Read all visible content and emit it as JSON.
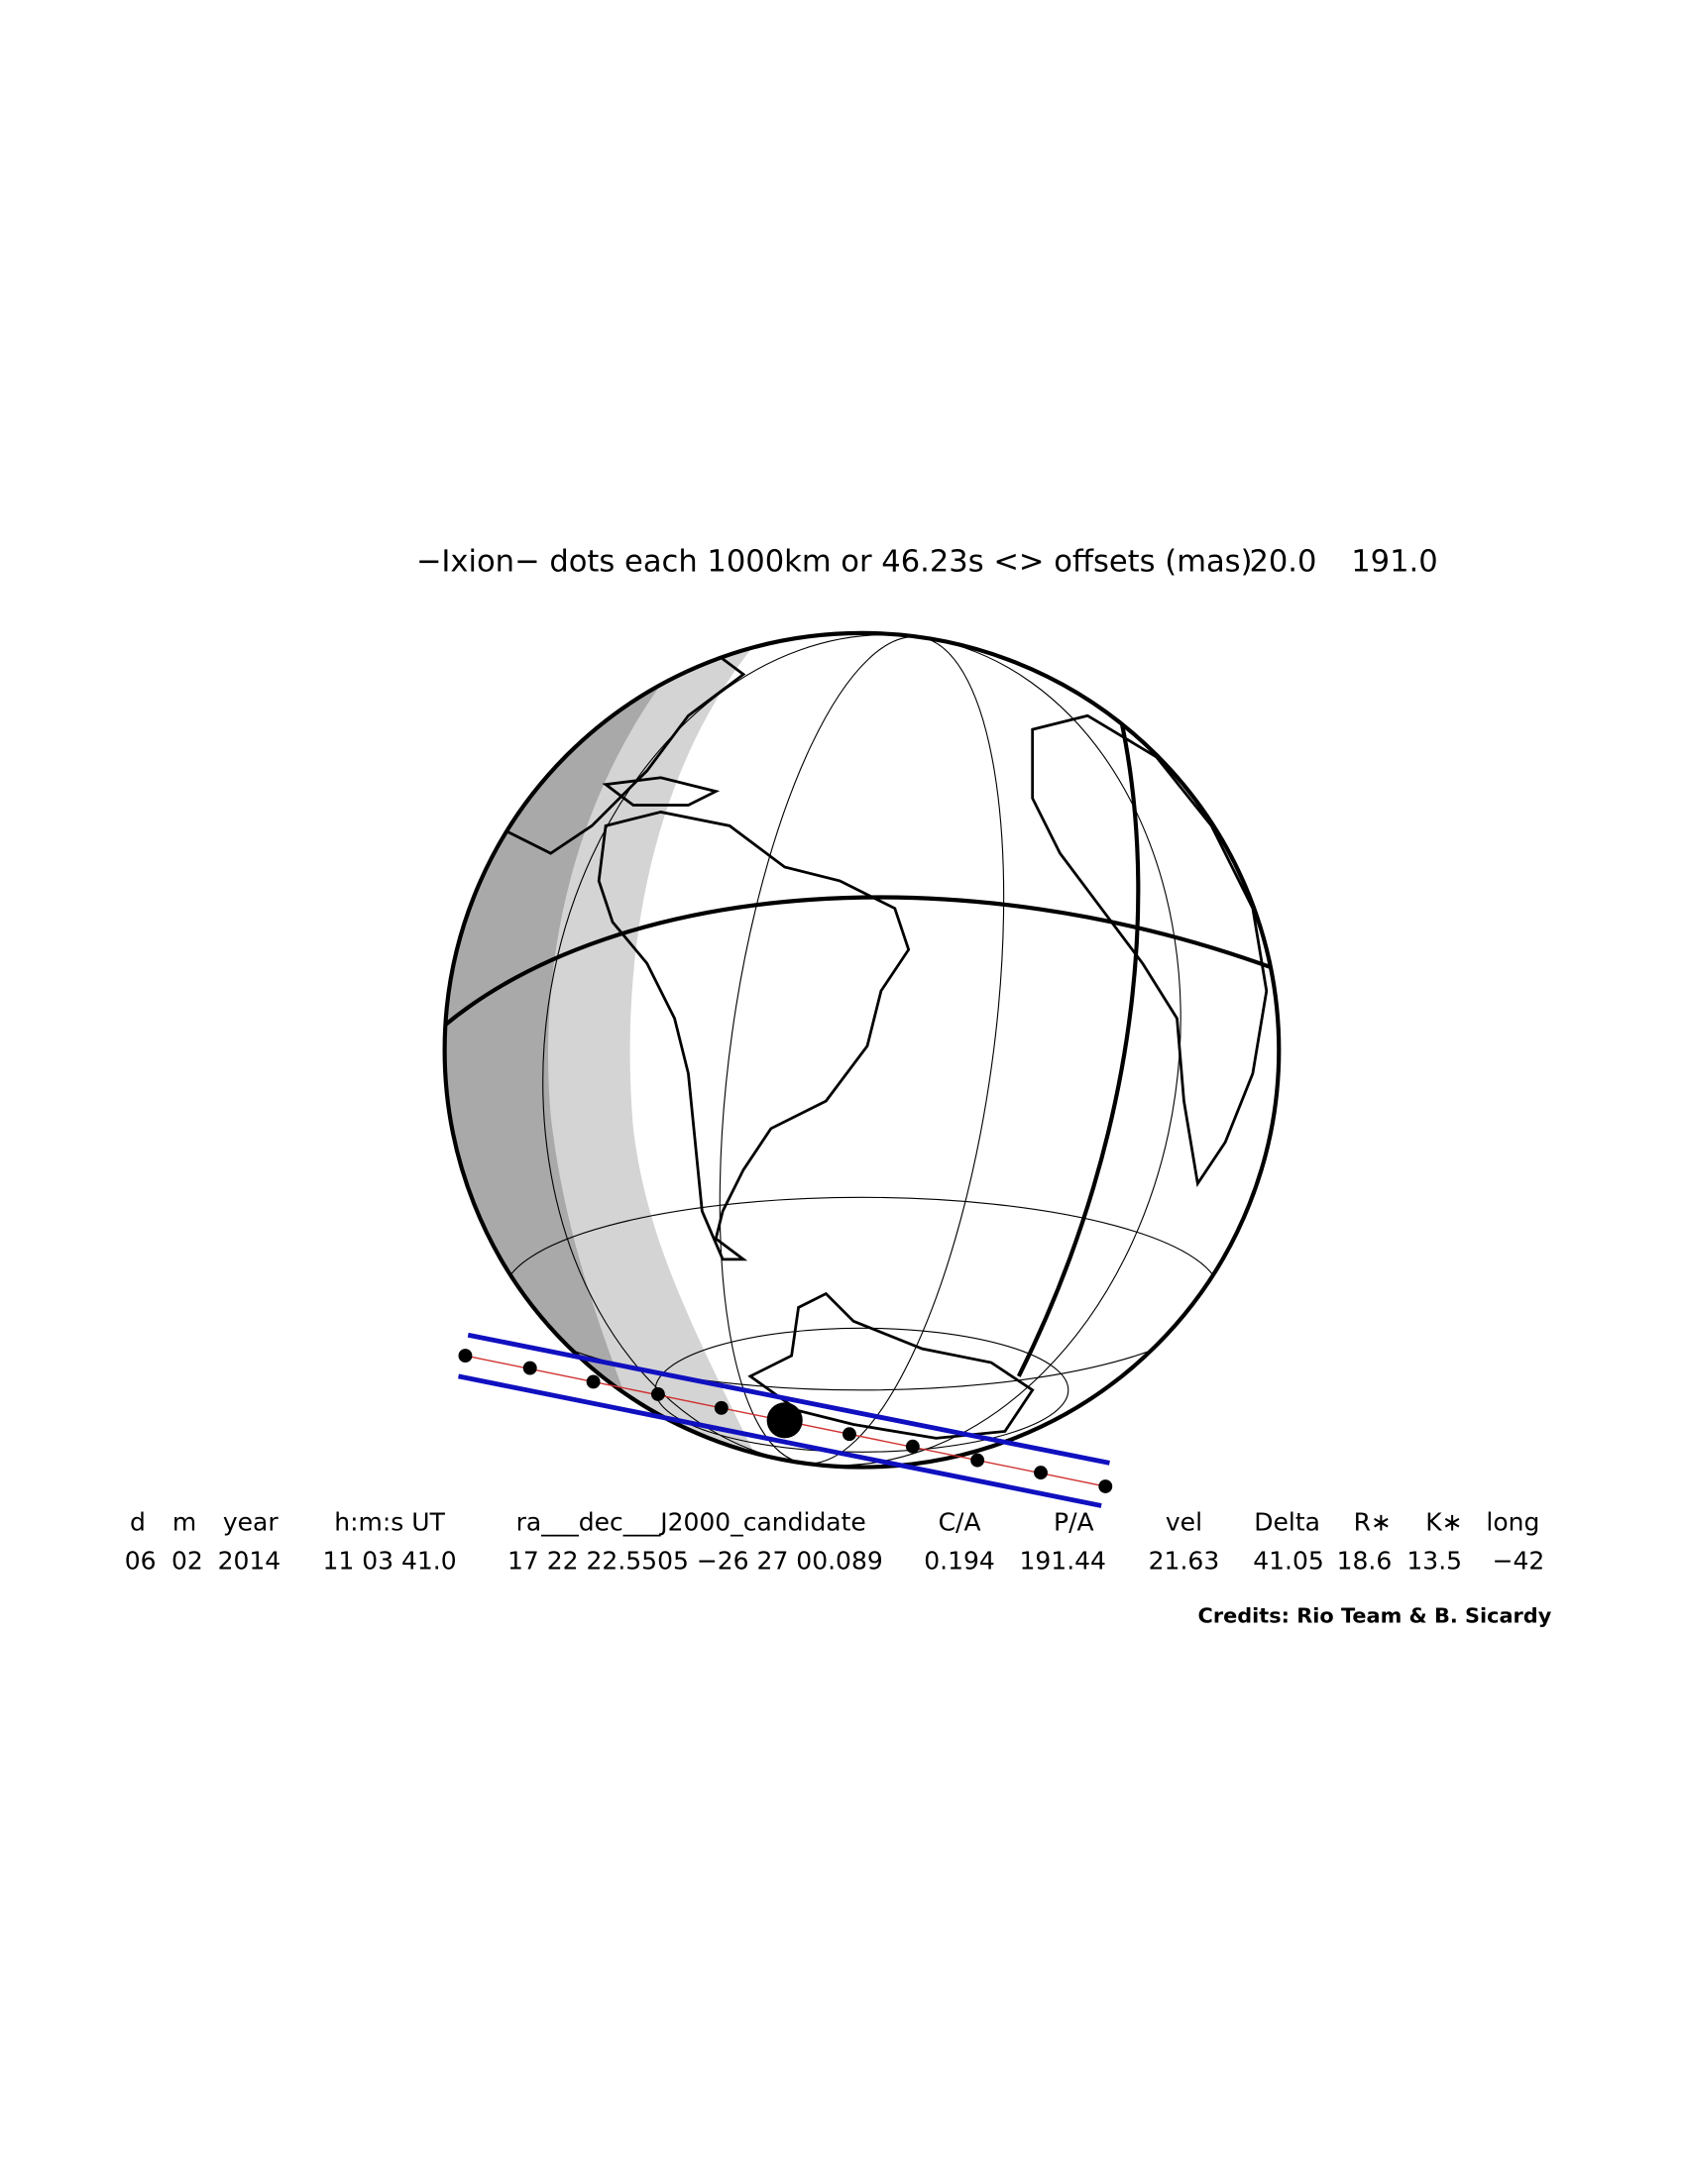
{
  "title": "−Ixion− dots each 1000km or 46.23s <> offsets (mas)",
  "offsets": [
    "20.0",
    "191.0"
  ],
  "table": {
    "headers": [
      "d",
      "m",
      "year",
      "h:m:s UT",
      "ra___dec___J2000_candidate",
      "C/A",
      "P/A",
      "vel",
      "Delta",
      "R∗",
      "K∗",
      "long"
    ],
    "values": [
      "06",
      "02",
      "2014",
      "11 03 41.0",
      "17 22 22.5505 −26 27 00.089",
      "0.194",
      "191.44",
      "21.63",
      "41.05",
      "18.6",
      "13.5",
      "−42"
    ]
  },
  "credits": "Credits: Rio Team & B. Sicardy"
}
